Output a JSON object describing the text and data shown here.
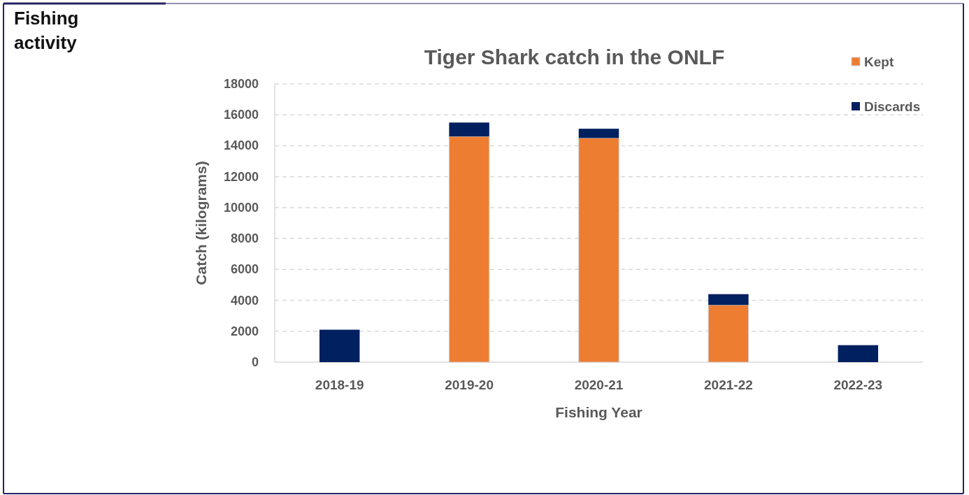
{
  "chart_data": {
    "type": "bar",
    "title": "Tiger Shark catch in the ONLF",
    "xlabel": "Fishing Year",
    "ylabel": "Catch (kilograms)",
    "annotations": [
      "Fishing activity"
    ],
    "categories": [
      "2018-19",
      "2019-20",
      "2020-21",
      "2021-22",
      "2022-23"
    ],
    "series": [
      {
        "name": "Kept",
        "color": "#ed7d31",
        "values": [
          null,
          14600,
          14500,
          3700,
          null
        ]
      },
      {
        "name": "Discards",
        "color": "#002060",
        "values": [
          2100,
          900,
          600,
          700,
          1100
        ]
      }
    ],
    "stacked": true,
    "ylim": [
      0,
      18000
    ],
    "yticks": [
      0,
      2000,
      4000,
      6000,
      8000,
      10000,
      12000,
      14000,
      16000,
      18000
    ],
    "grid": "y",
    "legend": "top right"
  }
}
